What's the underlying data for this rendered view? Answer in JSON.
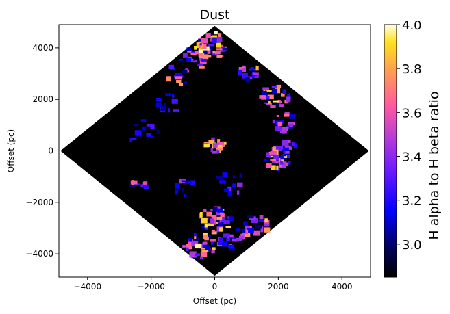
{
  "chart_data": {
    "type": "heatmap",
    "title": "Dust",
    "xlabel": "Offset (pc)",
    "ylabel": "Offset (pc)",
    "xlim": [
      -4900,
      4900
    ],
    "ylim": [
      -4900,
      4900
    ],
    "x_ticks": [
      -4000,
      -2000,
      0,
      2000,
      4000
    ],
    "x_tick_labels": [
      "−4000",
      "−2000",
      "0",
      "2000",
      "4000"
    ],
    "y_ticks": [
      -4000,
      -2000,
      0,
      2000,
      4000
    ],
    "y_tick_labels": [
      "−4000",
      "−2000",
      "0",
      "2000",
      "4000"
    ],
    "grid": false,
    "background_value_color": "#000000",
    "valid_region": {
      "shape": "diamond",
      "center": [
        0,
        0
      ],
      "half_diagonal": 4850
    },
    "colorbar": {
      "label": "H alpha to H beta ratio",
      "colormap": "gnuplot2",
      "range": [
        2.85,
        4.0
      ],
      "ticks": [
        3.0,
        3.2,
        3.4,
        3.6,
        3.8,
        4.0
      ],
      "tick_labels": [
        "3.0",
        "3.2",
        "3.4",
        "3.6",
        "3.8",
        "4.0"
      ]
    },
    "clumps": [
      {
        "x": 0,
        "y": 4100,
        "spread": 500,
        "n": 40,
        "vmin": 3.0,
        "vmax": 4.0
      },
      {
        "x": -600,
        "y": 3700,
        "spread": 500,
        "n": 28,
        "vmin": 3.0,
        "vmax": 4.0
      },
      {
        "x": -1200,
        "y": 2900,
        "spread": 400,
        "n": 14,
        "vmin": 3.0,
        "vmax": 3.9
      },
      {
        "x": 1100,
        "y": 3100,
        "spread": 300,
        "n": 8,
        "vmin": 3.0,
        "vmax": 4.0
      },
      {
        "x": 1900,
        "y": 2100,
        "spread": 450,
        "n": 28,
        "vmin": 3.0,
        "vmax": 4.0
      },
      {
        "x": 2200,
        "y": 1100,
        "spread": 350,
        "n": 18,
        "vmin": 3.0,
        "vmax": 3.7
      },
      {
        "x": 2000,
        "y": -300,
        "spread": 400,
        "n": 40,
        "vmin": 3.0,
        "vmax": 4.0
      },
      {
        "x": 2300,
        "y": 200,
        "spread": 250,
        "n": 10,
        "vmin": 3.0,
        "vmax": 3.5
      },
      {
        "x": 0,
        "y": -2700,
        "spread": 500,
        "n": 40,
        "vmin": 3.0,
        "vmax": 4.0
      },
      {
        "x": -500,
        "y": -3700,
        "spread": 500,
        "n": 36,
        "vmin": 3.0,
        "vmax": 4.0
      },
      {
        "x": 1300,
        "y": -2900,
        "spread": 400,
        "n": 18,
        "vmin": 3.0,
        "vmax": 4.0
      },
      {
        "x": 600,
        "y": -3400,
        "spread": 500,
        "n": 22,
        "vmin": 3.0,
        "vmax": 3.8
      },
      {
        "x": 0,
        "y": 200,
        "spread": 300,
        "n": 30,
        "vmin": 3.2,
        "vmax": 4.0
      },
      {
        "x": -2300,
        "y": -1300,
        "spread": 300,
        "n": 8,
        "vmin": 3.0,
        "vmax": 3.9
      },
      {
        "x": -2500,
        "y": 500,
        "spread": 250,
        "n": 5,
        "vmin": 3.0,
        "vmax": 3.3
      },
      {
        "x": -1500,
        "y": 1800,
        "spread": 400,
        "n": 10,
        "vmin": 3.0,
        "vmax": 3.3
      },
      {
        "x": -1000,
        "y": -1500,
        "spread": 400,
        "n": 10,
        "vmin": 3.0,
        "vmax": 3.5
      },
      {
        "x": 500,
        "y": -1300,
        "spread": 500,
        "n": 12,
        "vmin": 3.0,
        "vmax": 3.4
      },
      {
        "x": 1000,
        "y": 3000,
        "spread": 300,
        "n": 10,
        "vmin": 3.0,
        "vmax": 3.7
      },
      {
        "x": -2100,
        "y": 900,
        "spread": 400,
        "n": 8,
        "vmin": 3.0,
        "vmax": 3.3
      }
    ]
  }
}
